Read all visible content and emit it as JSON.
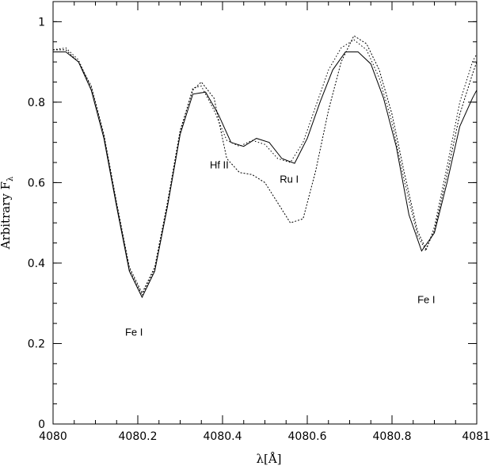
{
  "chart_data": {
    "type": "line",
    "title": "",
    "xlabel": "λ[Å]",
    "ylabel": "Arbitrary F",
    "ylabel_sub": "λ",
    "xlim": [
      4080,
      4081
    ],
    "ylim": [
      0,
      1.05
    ],
    "grid": false,
    "x_ticks": [
      {
        "value": 4080,
        "label": "4080"
      },
      {
        "value": 4080.2,
        "label": "4080.2"
      },
      {
        "value": 4080.4,
        "label": "4080.4"
      },
      {
        "value": 4080.6,
        "label": "4080.6"
      },
      {
        "value": 4080.8,
        "label": "4080.8"
      },
      {
        "value": 4081,
        "label": "4081"
      }
    ],
    "x_minor_step": 0.05,
    "y_ticks": [
      {
        "value": 0,
        "label": "0"
      },
      {
        "value": 0.2,
        "label": "0.2"
      },
      {
        "value": 0.4,
        "label": "0.4"
      },
      {
        "value": 0.6,
        "label": "0.6"
      },
      {
        "value": 0.8,
        "label": "0.8"
      },
      {
        "value": 1.0,
        "label": "1"
      }
    ],
    "y_minor_step": 0.05,
    "series": [
      {
        "style": "solid",
        "x": [
          4080.0,
          4080.03,
          4080.06,
          4080.09,
          4080.12,
          4080.15,
          4080.18,
          4080.21,
          4080.24,
          4080.27,
          4080.3,
          4080.33,
          4080.36,
          4080.39,
          4080.42,
          4080.45,
          4080.48,
          4080.51,
          4080.54,
          4080.57,
          4080.6,
          4080.63,
          4080.66,
          4080.69,
          4080.72,
          4080.75,
          4080.78,
          4080.81,
          4080.84,
          4080.87,
          4080.9,
          4080.93,
          4080.96,
          4080.99,
          4081.0
        ],
        "y": [
          0.925,
          0.925,
          0.9,
          0.83,
          0.71,
          0.54,
          0.38,
          0.315,
          0.38,
          0.54,
          0.72,
          0.82,
          0.825,
          0.77,
          0.7,
          0.69,
          0.71,
          0.7,
          0.66,
          0.648,
          0.71,
          0.8,
          0.88,
          0.925,
          0.925,
          0.895,
          0.81,
          0.69,
          0.52,
          0.43,
          0.475,
          0.6,
          0.74,
          0.81,
          0.83
        ]
      },
      {
        "style": "dotted-1",
        "x": [
          4080.0,
          4080.03,
          4080.06,
          4080.09,
          4080.12,
          4080.15,
          4080.18,
          4080.21,
          4080.24,
          4080.27,
          4080.3,
          4080.33,
          4080.35,
          4080.38,
          4080.41,
          4080.44,
          4080.47,
          4080.5,
          4080.53,
          4080.56,
          4080.59,
          4080.62,
          4080.65,
          4080.68,
          4080.71,
          4080.74,
          4080.77,
          4080.8,
          4080.83,
          4080.86,
          4080.88,
          4080.9,
          4080.93,
          4080.96,
          4080.99,
          4081.0
        ],
        "y": [
          0.93,
          0.93,
          0.9,
          0.84,
          0.72,
          0.55,
          0.39,
          0.325,
          0.39,
          0.55,
          0.73,
          0.83,
          0.85,
          0.81,
          0.66,
          0.625,
          0.62,
          0.6,
          0.55,
          0.5,
          0.51,
          0.63,
          0.78,
          0.9,
          0.965,
          0.945,
          0.88,
          0.77,
          0.62,
          0.48,
          0.435,
          0.48,
          0.62,
          0.77,
          0.87,
          0.9
        ]
      },
      {
        "style": "dotted-2",
        "x": [
          4080.0,
          4080.03,
          4080.06,
          4080.09,
          4080.12,
          4080.15,
          4080.18,
          4080.21,
          4080.24,
          4080.27,
          4080.3,
          4080.33,
          4080.35,
          4080.38,
          4080.41,
          4080.44,
          4080.47,
          4080.5,
          4080.53,
          4080.56,
          4080.59,
          4080.62,
          4080.65,
          4080.68,
          4080.71,
          4080.74,
          4080.77,
          4080.8,
          4080.83,
          4080.86,
          4080.88,
          4080.9,
          4080.93,
          4080.96,
          4080.99,
          4081.0
        ],
        "y": [
          0.93,
          0.935,
          0.905,
          0.835,
          0.715,
          0.545,
          0.385,
          0.32,
          0.385,
          0.545,
          0.725,
          0.835,
          0.84,
          0.78,
          0.705,
          0.69,
          0.705,
          0.695,
          0.66,
          0.65,
          0.7,
          0.79,
          0.88,
          0.935,
          0.955,
          0.93,
          0.86,
          0.75,
          0.6,
          0.47,
          0.43,
          0.49,
          0.64,
          0.8,
          0.9,
          0.92
        ]
      }
    ],
    "annotations": [
      {
        "text": "Hf II",
        "x": 4080.37,
        "y": 0.635
      },
      {
        "text": "Ru I",
        "x": 4080.535,
        "y": 0.6
      },
      {
        "text": "Fe I",
        "x": 4080.17,
        "y": 0.22
      },
      {
        "text": "Fe I",
        "x": 4080.86,
        "y": 0.3
      }
    ]
  }
}
